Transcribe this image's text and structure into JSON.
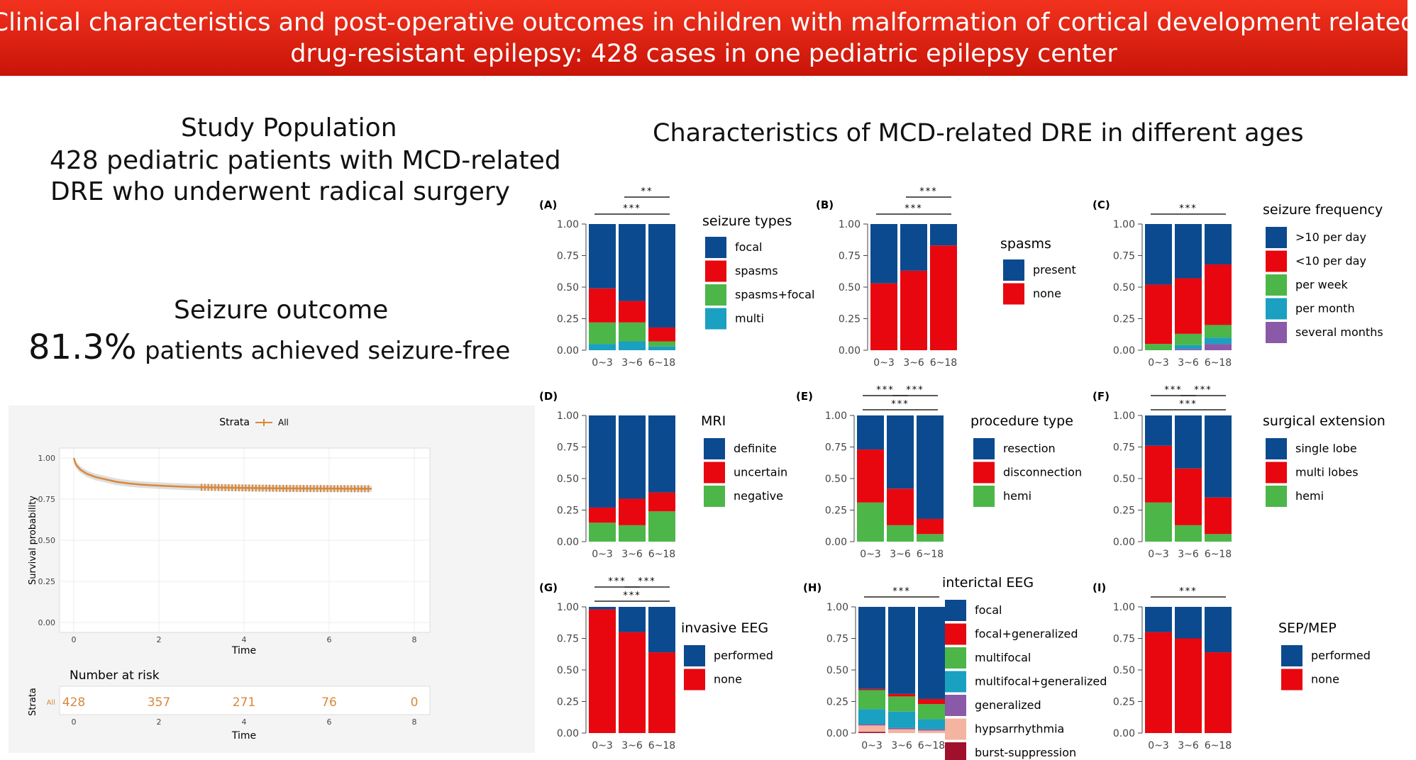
{
  "header": {
    "line1": "Clinical characteristics and post-operative outcomes in children with malformation of cortical development related",
    "line2": "drug-resistant epilepsy: 428 cases in one pediatric epilepsy center"
  },
  "study": {
    "title": "Study Population",
    "line1": "428 pediatric patients with MCD-related",
    "line2": "DRE who underwent radical surgery"
  },
  "outcome": {
    "title": "Seizure outcome",
    "percent": "81.3%",
    "text": "patients achieved seizure-free"
  },
  "colors": {
    "blue": "#0b4a8f",
    "red": "#e8070f",
    "green": "#4cb648",
    "teal": "#1aa0c0",
    "purple": "#8a5aa8",
    "peach": "#f4b4a0",
    "darkred": "#a0102a",
    "orange": "#d9883a"
  },
  "km": {
    "legend_title": "Strata",
    "legend_item": "All",
    "ylabel": "Survival probability",
    "xlabel": "Time",
    "yticks": [
      "0.00",
      "0.25",
      "0.50",
      "0.75",
      "1.00"
    ],
    "xticks": [
      "0",
      "2",
      "4",
      "6",
      "8"
    ],
    "risk_title": "Number at risk",
    "risk_ylabel": "Strata",
    "risk_strata": "All",
    "risk_values": [
      "428",
      "357",
      "271",
      "76",
      "0"
    ]
  },
  "main_title": "Characteristics of MCD-related DRE in different ages",
  "chart_data": [
    {
      "type": "km",
      "id": "survival",
      "curve": [
        [
          0,
          1.0
        ],
        [
          0.05,
          0.96
        ],
        [
          0.15,
          0.93
        ],
        [
          0.3,
          0.905
        ],
        [
          0.5,
          0.885
        ],
        [
          0.75,
          0.87
        ],
        [
          1,
          0.855
        ],
        [
          1.3,
          0.845
        ],
        [
          1.6,
          0.838
        ],
        [
          2,
          0.832
        ],
        [
          2.5,
          0.826
        ],
        [
          3,
          0.822
        ],
        [
          4,
          0.818
        ],
        [
          5,
          0.815
        ],
        [
          6,
          0.814
        ],
        [
          7,
          0.813
        ]
      ],
      "censor_range": [
        3,
        7
      ],
      "xlim": [
        0,
        8
      ],
      "ylim": [
        0,
        1
      ]
    },
    {
      "type": "bar",
      "label": "(A)",
      "legend_title": "seizure types",
      "categories": [
        "0~3",
        "3~6",
        "6~18"
      ],
      "series": [
        {
          "name": "multi",
          "color": "#1aa0c0",
          "values": [
            0.05,
            0.07,
            0.03
          ]
        },
        {
          "name": "spasms+focal",
          "color": "#4cb648",
          "values": [
            0.17,
            0.15,
            0.04
          ]
        },
        {
          "name": "spasms",
          "color": "#e8070f",
          "values": [
            0.27,
            0.17,
            0.11
          ]
        },
        {
          "name": "focal",
          "color": "#0b4a8f",
          "values": [
            0.51,
            0.61,
            0.82
          ]
        }
      ],
      "brackets": [
        {
          "from": 0,
          "to": 2,
          "label": "***"
        },
        {
          "from": 1,
          "to": 2,
          "label": "**"
        }
      ]
    },
    {
      "type": "bar",
      "label": "(B)",
      "legend_title": "spasms",
      "categories": [
        "0~3",
        "3~6",
        "6~18"
      ],
      "series": [
        {
          "name": "none",
          "color": "#e8070f",
          "values": [
            0.53,
            0.63,
            0.83
          ]
        },
        {
          "name": "present",
          "color": "#0b4a8f",
          "values": [
            0.47,
            0.37,
            0.17
          ]
        }
      ],
      "brackets": [
        {
          "from": 0,
          "to": 2,
          "label": "***"
        },
        {
          "from": 1,
          "to": 2,
          "label": "***"
        }
      ]
    },
    {
      "type": "bar",
      "label": "(C)",
      "legend_title": "seizure frequency",
      "categories": [
        "0~3",
        "3~6",
        "6~18"
      ],
      "series": [
        {
          "name": "several months",
          "color": "#8a5aa8",
          "values": [
            0.0,
            0.01,
            0.05
          ]
        },
        {
          "name": "per month",
          "color": "#1aa0c0",
          "values": [
            0.0,
            0.03,
            0.05
          ]
        },
        {
          "name": "per week",
          "color": "#4cb648",
          "values": [
            0.05,
            0.09,
            0.1
          ]
        },
        {
          "name": "<10 per day",
          "color": "#e8070f",
          "values": [
            0.47,
            0.44,
            0.48
          ]
        },
        {
          "name": ">10 per day",
          "color": "#0b4a8f",
          "values": [
            0.48,
            0.43,
            0.32
          ]
        }
      ],
      "brackets": [
        {
          "from": 0,
          "to": 2,
          "label": "***"
        }
      ]
    },
    {
      "type": "bar",
      "label": "(D)",
      "legend_title": "MRI",
      "categories": [
        "0~3",
        "3~6",
        "6~18"
      ],
      "series": [
        {
          "name": "negative",
          "color": "#4cb648",
          "values": [
            0.15,
            0.13,
            0.24
          ]
        },
        {
          "name": "uncertain",
          "color": "#e8070f",
          "values": [
            0.12,
            0.21,
            0.15
          ]
        },
        {
          "name": "definite",
          "color": "#0b4a8f",
          "values": [
            0.73,
            0.66,
            0.61
          ]
        }
      ],
      "brackets": []
    },
    {
      "type": "bar",
      "label": "(E)",
      "legend_title": "procedure type",
      "categories": [
        "0~3",
        "3~6",
        "6~18"
      ],
      "series": [
        {
          "name": "hemi",
          "color": "#4cb648",
          "values": [
            0.31,
            0.13,
            0.06
          ]
        },
        {
          "name": "disconnection",
          "color": "#e8070f",
          "values": [
            0.42,
            0.29,
            0.12
          ]
        },
        {
          "name": "resection",
          "color": "#0b4a8f",
          "values": [
            0.27,
            0.58,
            0.82
          ]
        }
      ],
      "brackets": [
        {
          "from": 0,
          "to": 2,
          "label": "***"
        },
        {
          "from": 0,
          "to": 1,
          "label": "***"
        },
        {
          "from": 1,
          "to": 2,
          "label": "***"
        }
      ]
    },
    {
      "type": "bar",
      "label": "(F)",
      "legend_title": "surgical extension",
      "categories": [
        "0~3",
        "3~6",
        "6~18"
      ],
      "series": [
        {
          "name": "hemi",
          "color": "#4cb648",
          "values": [
            0.31,
            0.13,
            0.06
          ]
        },
        {
          "name": "multi lobes",
          "color": "#e8070f",
          "values": [
            0.45,
            0.45,
            0.29
          ]
        },
        {
          "name": "single lobe",
          "color": "#0b4a8f",
          "values": [
            0.24,
            0.42,
            0.65
          ]
        }
      ],
      "brackets": [
        {
          "from": 0,
          "to": 2,
          "label": "***"
        },
        {
          "from": 0,
          "to": 1,
          "label": "***"
        },
        {
          "from": 1,
          "to": 2,
          "label": "***"
        }
      ]
    },
    {
      "type": "bar",
      "label": "(G)",
      "legend_title": "invasive EEG",
      "categories": [
        "0~3",
        "3~6",
        "6~18"
      ],
      "series": [
        {
          "name": "none",
          "color": "#e8070f",
          "values": [
            0.98,
            0.8,
            0.64
          ]
        },
        {
          "name": "performed",
          "color": "#0b4a8f",
          "values": [
            0.02,
            0.2,
            0.36
          ]
        }
      ],
      "brackets": [
        {
          "from": 0,
          "to": 2,
          "label": "***"
        },
        {
          "from": 0,
          "to": 1,
          "label": "***"
        },
        {
          "from": 1,
          "to": 2,
          "label": "***"
        }
      ]
    },
    {
      "type": "bar",
      "label": "(H)",
      "legend_title": "interictal EEG",
      "categories": [
        "0~3",
        "3~6",
        "6~18"
      ],
      "series": [
        {
          "name": "burst-suppression",
          "color": "#a0102a",
          "values": [
            0.01,
            0.0,
            0.0
          ]
        },
        {
          "name": "hypsarrhythmia",
          "color": "#f4b4a0",
          "values": [
            0.05,
            0.03,
            0.02
          ]
        },
        {
          "name": "generalized",
          "color": "#8a5aa8",
          "values": [
            0.01,
            0.01,
            0.01
          ]
        },
        {
          "name": "multifocal+generalized",
          "color": "#1aa0c0",
          "values": [
            0.12,
            0.13,
            0.08
          ]
        },
        {
          "name": "multifocal",
          "color": "#4cb648",
          "values": [
            0.15,
            0.12,
            0.12
          ]
        },
        {
          "name": "focal+generalized",
          "color": "#e8070f",
          "values": [
            0.01,
            0.02,
            0.04
          ]
        },
        {
          "name": "focal",
          "color": "#0b4a8f",
          "values": [
            0.65,
            0.69,
            0.73
          ]
        }
      ],
      "brackets": [
        {
          "from": 0,
          "to": 2,
          "label": "***"
        }
      ]
    },
    {
      "type": "bar",
      "label": "(I)",
      "legend_title": "SEP/MEP",
      "categories": [
        "0~3",
        "3~6",
        "6~18"
      ],
      "series": [
        {
          "name": "none",
          "color": "#e8070f",
          "values": [
            0.8,
            0.75,
            0.64
          ]
        },
        {
          "name": "performed",
          "color": "#0b4a8f",
          "values": [
            0.2,
            0.25,
            0.36
          ]
        }
      ],
      "brackets": [
        {
          "from": 0,
          "to": 2,
          "label": "***"
        }
      ]
    }
  ],
  "bar_yticks": [
    "0.00",
    "0.25",
    "0.50",
    "0.75",
    "1.00"
  ]
}
